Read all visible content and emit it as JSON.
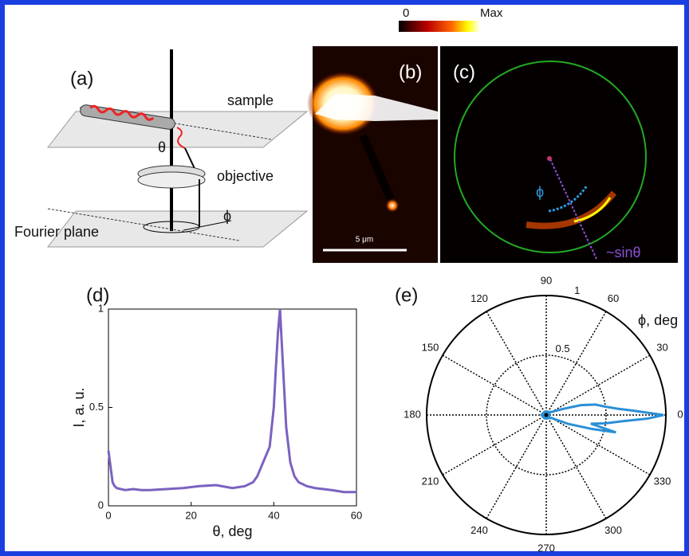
{
  "colorbar": {
    "min_label": "0",
    "max_label": "Max"
  },
  "panel_a": {
    "label": "(a)",
    "sample": "sample",
    "theta": "θ",
    "objective": "objective",
    "phi": "ϕ",
    "fourier_plane": "Fourier plane"
  },
  "panel_b": {
    "label": "(b)",
    "scale_bar": "5 μm"
  },
  "panel_c": {
    "label": "(c)",
    "phi": "ϕ",
    "radial": "~sinθ"
  },
  "chart_data": [
    {
      "type": "line",
      "panel_label": "(d)",
      "x_label": "θ, deg",
      "y_label": "I, a. u.",
      "x": [
        0,
        0.5,
        1,
        1.5,
        2,
        4,
        6,
        8,
        10,
        14,
        18,
        22,
        26,
        30,
        33,
        35,
        36,
        37,
        38,
        39,
        40,
        40.5,
        41,
        41.5,
        42,
        42.5,
        43,
        44,
        45,
        46,
        48,
        50,
        54,
        57,
        60
      ],
      "series": [
        {
          "color": "#7b62c0",
          "values": [
            0.28,
            0.2,
            0.12,
            0.1,
            0.09,
            0.08,
            0.085,
            0.08,
            0.08,
            0.085,
            0.09,
            0.1,
            0.105,
            0.09,
            0.1,
            0.12,
            0.15,
            0.2,
            0.25,
            0.3,
            0.5,
            0.7,
            0.88,
            1.0,
            0.8,
            0.6,
            0.4,
            0.22,
            0.15,
            0.12,
            0.1,
            0.09,
            0.08,
            0.07,
            0.07
          ]
        }
      ],
      "xlim": [
        0,
        60
      ],
      "ylim": [
        0,
        1
      ],
      "xticks": [
        0,
        20,
        40,
        60
      ],
      "yticks": [
        0,
        0.5,
        1
      ]
    },
    {
      "type": "polar",
      "panel_label": "(e)",
      "axis_label": "ϕ, deg",
      "theta": [
        0,
        3,
        5,
        8,
        12,
        16,
        20,
        30,
        60,
        90,
        120,
        150,
        180,
        210,
        240,
        270,
        300,
        330,
        338,
        343,
        346,
        349,
        352,
        355,
        358
      ],
      "series": [
        {
          "color": "#2a8fd6",
          "values": [
            0.98,
            0.72,
            0.6,
            0.5,
            0.42,
            0.3,
            0.15,
            0.05,
            0.03,
            0.03,
            0.03,
            0.03,
            0.04,
            0.03,
            0.03,
            0.03,
            0.03,
            0.05,
            0.2,
            0.4,
            0.6,
            0.38,
            0.5,
            0.62,
            0.85
          ]
        }
      ],
      "rlim": [
        0,
        1
      ],
      "rticks": [
        0.5,
        1
      ],
      "thetaticks": [
        0,
        30,
        60,
        90,
        120,
        150,
        180,
        210,
        240,
        270,
        300,
        330
      ]
    }
  ]
}
